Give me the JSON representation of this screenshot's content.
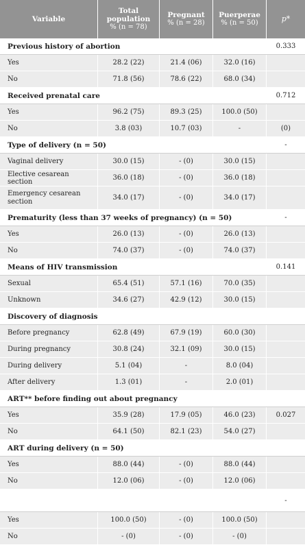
{
  "header": {
    "variable": "Variable",
    "total": "Total population",
    "total_sub": "% (n = 78)",
    "pregnant": "Pregnant",
    "pregnant_sub": "% (n = 28)",
    "puerperae": "Puerperae",
    "puerperae_sub": "% (n = 50)",
    "p": "p*"
  },
  "sections": [
    {
      "title": "Previous history of abortion",
      "p": "0.333",
      "rows": [
        {
          "label": "Yes",
          "total": "28.2 (22)",
          "pregnant": "21.4 (06)",
          "puerperae": "32.0 (16)",
          "p": ""
        },
        {
          "label": "No",
          "total": "71.8 (56)",
          "pregnant": "78.6 (22)",
          "puerperae": "68.0 (34)",
          "p": ""
        }
      ]
    },
    {
      "title": "Received prenatal care",
      "p": "0.712",
      "rows": [
        {
          "label": "Yes",
          "total": "96.2 (75)",
          "pregnant": "89.3 (25)",
          "puerperae": "100.0 (50)",
          "p": ""
        },
        {
          "label": "No",
          "total": "3.8 (03)",
          "pregnant": "10.7 (03)",
          "puerperae": "-",
          "p": "(0)"
        }
      ]
    },
    {
      "title": "Type of delivery (n = 50)",
      "p": "-",
      "rows": [
        {
          "label": "Vaginal delivery",
          "total": "30.0 (15)",
          "pregnant": "- (0)",
          "puerperae": "30.0 (15)",
          "p": ""
        },
        {
          "label": "Elective cesarean section",
          "total": "36.0 (18)",
          "pregnant": "- (0)",
          "puerperae": "36.0 (18)",
          "p": ""
        },
        {
          "label": "Emergency cesarean section",
          "total": "34.0 (17)",
          "pregnant": "- (0)",
          "puerperae": "34.0 (17)",
          "p": "",
          "tall": true
        }
      ]
    },
    {
      "title": "Prematurity (less than 37 weeks of pregnancy) (n = 50)",
      "p": "-",
      "rows": [
        {
          "label": "Yes",
          "total": "26.0 (13)",
          "pregnant": "- (0)",
          "puerperae": "26.0 (13)",
          "p": ""
        },
        {
          "label": "No",
          "total": "74.0 (37)",
          "pregnant": "- (0)",
          "puerperae": "74.0 (37)",
          "p": ""
        }
      ]
    },
    {
      "title": "Means of HIV transmission",
      "p": "0.141",
      "rows": [
        {
          "label": "Sexual",
          "total": "65.4 (51)",
          "pregnant": "57.1 (16)",
          "puerperae": "70.0 (35)",
          "p": ""
        },
        {
          "label": "Unknown",
          "total": "34.6 (27)",
          "pregnant": "42.9 (12)",
          "puerperae": "30.0 (15)",
          "p": ""
        }
      ]
    },
    {
      "title": "Discovery of diagnosis",
      "p": "",
      "rows": [
        {
          "label": "Before pregnancy",
          "total": "62.8 (49)",
          "pregnant": "67.9 (19)",
          "puerperae": "60.0 (30)",
          "p": ""
        },
        {
          "label": "During pregnancy",
          "total": "30.8 (24)",
          "pregnant": "32.1 (09)",
          "puerperae": "30.0 (15)",
          "p": ""
        },
        {
          "label": "During delivery",
          "total": "5.1 (04)",
          "pregnant": "-",
          "puerperae": "8.0 (04)",
          "p": ""
        },
        {
          "label": "After delivery",
          "total": "1.3 (01)",
          "pregnant": "-",
          "puerperae": "2.0 (01)",
          "p": ""
        }
      ]
    },
    {
      "title": "ART** before finding out about pregnancy",
      "p": "",
      "rows": [
        {
          "label": "Yes",
          "total": "35.9 (28)",
          "pregnant": "17.9 (05)",
          "puerperae": "46.0 (23)",
          "p": "0.027"
        },
        {
          "label": "No",
          "total": "64.1 (50)",
          "pregnant": "82.1 (23)",
          "puerperae": "54.0 (27)",
          "p": ""
        }
      ]
    },
    {
      "title": "ART during delivery (n = 50)",
      "p": "",
      "rows": [
        {
          "label": "Yes",
          "total": "88.0 (44)",
          "pregnant": "- (0)",
          "puerperae": "88.0 (44)",
          "p": ""
        },
        {
          "label": "No",
          "total": "12.0 (06)",
          "pregnant": "- (0)",
          "puerperae": "12.0 (06)",
          "p": ""
        }
      ]
    },
    {
      "title": "",
      "p": "-",
      "blank": true,
      "rows": [
        {
          "label": "Yes",
          "total": "100.0 (50)",
          "pregnant": "- (0)",
          "puerperae": "100.0 (50)",
          "p": ""
        },
        {
          "label": "No",
          "total": "- (0)",
          "pregnant": "- (0)",
          "puerperae": "- (0)",
          "p": ""
        }
      ]
    }
  ]
}
